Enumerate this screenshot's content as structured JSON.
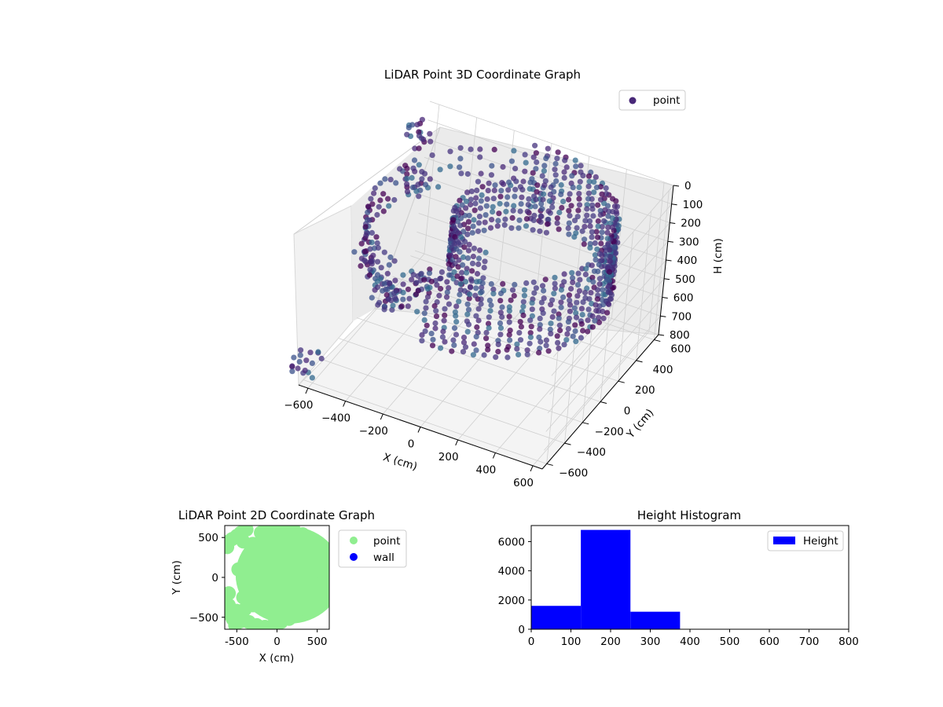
{
  "chart_data": [
    {
      "type": "scatter",
      "projection": "3d",
      "title": "LiDAR Point 3D Coordinate Graph",
      "xlabel": "X (cm)",
      "ylabel": "Y (cm)",
      "zlabel": "H (cm)",
      "xlim": [
        -650,
        650
      ],
      "ylim": [
        -650,
        650
      ],
      "zlim": [
        800,
        0
      ],
      "xticks": [
        "−600",
        "−400",
        "−200",
        "0",
        "200",
        "400",
        "600"
      ],
      "yticks": [
        "−600",
        "−400",
        "−200",
        "0",
        "200",
        "400",
        "600"
      ],
      "zticks": [
        "0",
        "100",
        "200",
        "300",
        "400",
        "500",
        "600",
        "700",
        "800"
      ],
      "grid": true,
      "legend": "top-right",
      "colormap": "viridis",
      "series": [
        {
          "name": "point",
          "color": "#482878",
          "description_geometry": "cylindrical wall of points radius ~600 cm plus irregular clusters",
          "ring": {
            "radius": 600,
            "h_min": 0,
            "h_max": 400
          },
          "clusters": [
            {
              "x": -500,
              "y": -350,
              "h": 250
            },
            {
              "x": -350,
              "y": -450,
              "h": 300
            },
            {
              "x": -250,
              "y": -520,
              "h": 280
            },
            {
              "x": -150,
              "y": -400,
              "h": 230
            },
            {
              "x": -550,
              "y": 300,
              "h": 200
            },
            {
              "x": -620,
              "y": 450,
              "h": 50
            },
            {
              "x": -640,
              "y": -600,
              "h": 700
            }
          ]
        }
      ]
    },
    {
      "type": "scatter",
      "title": "LiDAR Point 2D Coordinate Graph",
      "xlabel": "X (cm)",
      "ylabel": "Y (cm)",
      "xlim": [
        -650,
        650
      ],
      "ylim": [
        -650,
        650
      ],
      "xticks": [
        -500,
        0,
        500
      ],
      "yticks": [
        -500,
        0,
        500
      ],
      "legend": "outside-right",
      "series": [
        {
          "name": "point",
          "color": "#90ee90",
          "points": [
            [
              -600,
              450
            ],
            [
              -620,
              380
            ],
            [
              -560,
              480
            ],
            [
              -500,
              520
            ],
            [
              -450,
              560
            ],
            [
              -380,
              600
            ],
            [
              -300,
              420
            ],
            [
              -250,
              350
            ],
            [
              -200,
              300
            ],
            [
              -180,
              150
            ],
            [
              -150,
              50
            ],
            [
              -160,
              -50
            ],
            [
              -200,
              -150
            ],
            [
              -250,
              -250
            ],
            [
              -300,
              -350
            ],
            [
              -400,
              -400
            ],
            [
              -500,
              -420
            ],
            [
              -600,
              -350
            ],
            [
              -620,
              -450
            ],
            [
              -550,
              -520
            ],
            [
              -450,
              -550
            ],
            [
              -350,
              -560
            ],
            [
              -250,
              -600
            ],
            [
              -150,
              -620
            ],
            [
              -50,
              -600
            ],
            [
              50,
              -560
            ],
            [
              150,
              -520
            ],
            [
              250,
              -470
            ],
            [
              350,
              -400
            ],
            [
              450,
              -320
            ],
            [
              520,
              -200
            ],
            [
              560,
              -50
            ],
            [
              570,
              50
            ],
            [
              550,
              200
            ],
            [
              500,
              320
            ],
            [
              420,
              450
            ],
            [
              320,
              540
            ],
            [
              200,
              620
            ],
            [
              100,
              640
            ],
            [
              0,
              650
            ],
            [
              -100,
              600
            ],
            [
              -200,
              560
            ],
            [
              -520,
              -600
            ],
            [
              -600,
              -200
            ],
            [
              -480,
              100
            ],
            [
              -350,
              200
            ],
            [
              -300,
              50
            ],
            [
              -300,
              -100
            ],
            [
              -420,
              -250
            ],
            [
              -420,
              450
            ]
          ]
        },
        {
          "name": "wall",
          "color": "#0000ff",
          "points": []
        }
      ]
    },
    {
      "type": "bar",
      "histogram": true,
      "title": "Height Histogram",
      "xlim": [
        0,
        800
      ],
      "ylim": [
        0,
        7100
      ],
      "xticks": [
        0,
        100,
        200,
        300,
        400,
        500,
        600,
        700,
        800
      ],
      "yticks": [
        0,
        2000,
        4000,
        6000
      ],
      "legend": "top-right",
      "series": [
        {
          "name": "Height",
          "color": "#0000ff",
          "bins": [
            {
              "x0": 0,
              "x1": 125,
              "count": 1600
            },
            {
              "x0": 125,
              "x1": 250,
              "count": 6800
            },
            {
              "x0": 250,
              "x1": 375,
              "count": 1200
            },
            {
              "x0": 375,
              "x1": 500,
              "count": 15
            },
            {
              "x0": 500,
              "x1": 625,
              "count": 8
            },
            {
              "x0": 625,
              "x1": 750,
              "count": 5
            }
          ]
        }
      ]
    }
  ]
}
